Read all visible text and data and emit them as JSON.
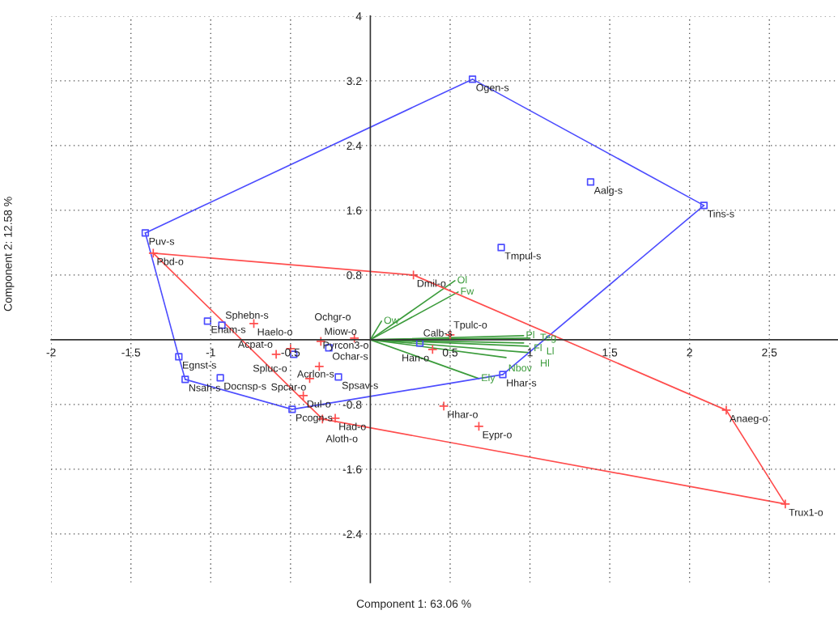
{
  "chart_data": {
    "type": "scatter",
    "xlabel": "Component 1: 63.06 %",
    "ylabel": "Component 2: 12.58 %",
    "xlim": [
      -2,
      2.93
    ],
    "ylim": [
      -3.0,
      4
    ],
    "xticks": [
      -2,
      -1.5,
      -1,
      -0.5,
      0.5,
      1,
      1.5,
      2,
      2.5
    ],
    "yticks": [
      -2.4,
      -1.6,
      -0.8,
      0.8,
      1.6,
      2.4,
      3.2,
      4
    ],
    "grid": true,
    "legend": false,
    "line_style": "solid",
    "series": [
      {
        "type": "line",
        "color": "#4d4dff",
        "marker": "none",
        "x": [
          -1.41,
          0.64
        ],
        "values": [
          1.32,
          3.22
        ]
      },
      {
        "type": "line",
        "color": "#4d4dff",
        "marker": "none",
        "x": [
          0.64,
          2.09
        ],
        "values": [
          3.22,
          1.66
        ]
      },
      {
        "type": "line",
        "color": "#4d4dff",
        "marker": "none",
        "x": [
          0.83,
          2.09
        ],
        "values": [
          -0.43,
          1.66
        ]
      },
      {
        "type": "line",
        "color": "#4d4dff",
        "marker": "none",
        "x": [
          -0.49,
          0.83
        ],
        "values": [
          -0.86,
          -0.43
        ]
      },
      {
        "type": "line",
        "color": "#4d4dff",
        "marker": "none",
        "x": [
          -1.16,
          -0.49
        ],
        "values": [
          -0.49,
          -0.86
        ]
      },
      {
        "type": "line",
        "color": "#4d4dff",
        "marker": "none",
        "x": [
          -1.2,
          -1.16
        ],
        "values": [
          -0.21,
          -0.49
        ]
      },
      {
        "type": "line",
        "color": "#4d4dff",
        "marker": "none",
        "x": [
          -1.41,
          -1.2
        ],
        "values": [
          1.32,
          -0.21
        ]
      },
      {
        "type": "line",
        "color": "#ff4d4d",
        "marker": "none",
        "x": [
          -1.36,
          0.27
        ],
        "values": [
          1.07,
          0.8
        ]
      },
      {
        "type": "line",
        "color": "#ff4d4d",
        "marker": "none",
        "x": [
          0.27,
          2.23
        ],
        "values": [
          0.8,
          -0.87
        ]
      },
      {
        "type": "line",
        "color": "#ff4d4d",
        "marker": "none",
        "x": [
          2.23,
          2.6
        ],
        "values": [
          -0.87,
          -2.03
        ]
      },
      {
        "type": "line",
        "color": "#ff4d4d",
        "marker": "none",
        "x": [
          -0.3,
          2.6
        ],
        "values": [
          -0.98,
          -2.03
        ]
      },
      {
        "type": "line",
        "color": "#ff4d4d",
        "marker": "none",
        "x": [
          -1.36,
          -0.3
        ],
        "values": [
          1.07,
          -0.98
        ]
      },
      {
        "type": "line",
        "name": "Ol",
        "color": "#3c9c3c",
        "marker": "none",
        "x": [
          0,
          0.53
        ],
        "values": [
          0,
          0.73
        ]
      },
      {
        "type": "line",
        "name": "Fw",
        "color": "#3c9c3c",
        "marker": "none",
        "x": [
          0,
          0.55
        ],
        "values": [
          0,
          0.59
        ]
      },
      {
        "type": "line",
        "name": "Ow",
        "color": "#3c9c3c",
        "marker": "none",
        "x": [
          0,
          0.07
        ],
        "values": [
          0,
          0.23
        ]
      },
      {
        "type": "line",
        "name": "Pl",
        "color": "#3c9c3c",
        "marker": "none",
        "x": [
          0,
          0.96
        ],
        "values": [
          0,
          0.05
        ]
      },
      {
        "type": "line",
        "name": "Teg",
        "color": "#3c9c3c",
        "marker": "none",
        "x": [
          0,
          1.0
        ],
        "values": [
          0,
          0.02
        ]
      },
      {
        "type": "line",
        "name": "Fl",
        "color": "#3c9c3c",
        "marker": "none",
        "x": [
          0,
          0.96
        ],
        "values": [
          0,
          -0.04
        ]
      },
      {
        "type": "line",
        "name": "Ll",
        "color": "#3c9c3c",
        "marker": "none",
        "x": [
          0,
          0.99
        ],
        "values": [
          0,
          -0.08
        ]
      },
      {
        "type": "line",
        "name": "Hl",
        "color": "#3c9c3c",
        "marker": "none",
        "x": [
          0,
          1.0
        ],
        "values": [
          0,
          -0.16
        ]
      },
      {
        "type": "line",
        "name": "Nbov",
        "color": "#3c9c3c",
        "marker": "none",
        "x": [
          0,
          0.85
        ],
        "values": [
          0,
          -0.22
        ]
      },
      {
        "type": "line",
        "name": "Ely",
        "color": "#3c9c3c",
        "marker": "none",
        "x": [
          0,
          0.68
        ],
        "values": [
          0,
          -0.48
        ]
      },
      {
        "type": "scatter",
        "color": "#4d4dff",
        "marker": "square",
        "x": [
          0.64,
          1.38,
          2.09,
          0.82,
          -1.41,
          -1.02,
          -0.93,
          -1.2,
          -1.16,
          -0.94,
          -0.49,
          -0.48,
          -0.26,
          -0.2,
          0.31,
          0.83
        ],
        "values": [
          3.22,
          1.95,
          1.66,
          1.14,
          1.32,
          0.23,
          0.18,
          -0.21,
          -0.49,
          -0.47,
          -0.86,
          -0.18,
          -0.1,
          -0.46,
          -0.04,
          -0.43
        ]
      },
      {
        "type": "scatter",
        "color": "#ff4d4d",
        "marker": "cross",
        "x": [
          -1.36,
          0.27,
          -0.73,
          -0.31,
          -0.1,
          -0.5,
          -0.59,
          -0.32,
          -0.38,
          -0.42,
          -0.22,
          -0.3,
          0.5,
          0.39,
          0.46,
          0.68,
          2.23,
          2.6
        ],
        "values": [
          1.07,
          0.8,
          0.2,
          -0.02,
          0.02,
          -0.11,
          -0.18,
          -0.33,
          -0.48,
          -0.69,
          -0.97,
          -0.98,
          0.06,
          -0.12,
          -0.82,
          -1.07,
          -0.87,
          -2.03
        ]
      }
    ],
    "annotations": [
      {
        "text": "Ogen-s",
        "x": 0.64,
        "y": 3.22
      },
      {
        "text": "Aalg-s",
        "x": 1.38,
        "y": 1.95
      },
      {
        "text": "Tins-s",
        "x": 2.09,
        "y": 1.66
      },
      {
        "text": "Tmpul-s",
        "x": 0.82,
        "y": 1.14
      },
      {
        "text": "Puv-s",
        "x": -1.41,
        "y": 1.32
      },
      {
        "text": "Eham-s",
        "x": -1.02,
        "y": 0.23
      },
      {
        "text": "Sphebn-s",
        "x": -0.93,
        "y": 0.18
      },
      {
        "text": "Egnst-s",
        "x": -1.2,
        "y": -0.21
      },
      {
        "text": "Nsah-s",
        "x": -1.16,
        "y": -0.49
      },
      {
        "text": "Docnsp-s",
        "x": -0.94,
        "y": -0.47
      },
      {
        "text": "Pcogn-s",
        "x": -0.49,
        "y": -0.86
      },
      {
        "text": "Acrlon-s",
        "x": -0.48,
        "y": -0.18
      },
      {
        "text": "Ochar-s",
        "x": -0.26,
        "y": -0.1
      },
      {
        "text": "Spsav-s",
        "x": -0.2,
        "y": -0.46
      },
      {
        "text": "Calb-s",
        "x": 0.31,
        "y": -0.04
      },
      {
        "text": "Hhar-s",
        "x": 0.83,
        "y": -0.43
      },
      {
        "text": "Pbd-o",
        "x": -1.36,
        "y": 1.07
      },
      {
        "text": "Dmil-o",
        "x": 0.27,
        "y": 0.8
      },
      {
        "text": "Haelo-o",
        "x": -0.73,
        "y": 0.2
      },
      {
        "text": "Miow-o",
        "x": -0.31,
        "y": -0.02
      },
      {
        "text": "Ochgr-o",
        "x": -0.1,
        "y": 0.02
      },
      {
        "text": "Spluc-o",
        "x": -0.5,
        "y": -0.11
      },
      {
        "text": "Acpat-o",
        "x": -0.59,
        "y": -0.18
      },
      {
        "text": "Pyrcon3-o",
        "x": -0.32,
        "y": -0.33
      },
      {
        "text": "Spcar-o",
        "x": -0.38,
        "y": -0.48
      },
      {
        "text": "Dul-o",
        "x": -0.42,
        "y": -0.69
      },
      {
        "text": "Had-o",
        "x": -0.22,
        "y": -0.97
      },
      {
        "text": "Aloth-o",
        "x": -0.3,
        "y": -0.98
      },
      {
        "text": "Tpulc-o",
        "x": 0.5,
        "y": 0.06
      },
      {
        "text": "Han-o",
        "x": 0.39,
        "y": -0.12
      },
      {
        "text": "Hhar-o",
        "x": 0.46,
        "y": -0.82
      },
      {
        "text": "Eypr-o",
        "x": 0.68,
        "y": -1.07
      },
      {
        "text": "Anaeg-o",
        "x": 2.23,
        "y": -0.87
      },
      {
        "text": "Trux1-o",
        "x": 2.6,
        "y": -2.03
      }
    ]
  }
}
